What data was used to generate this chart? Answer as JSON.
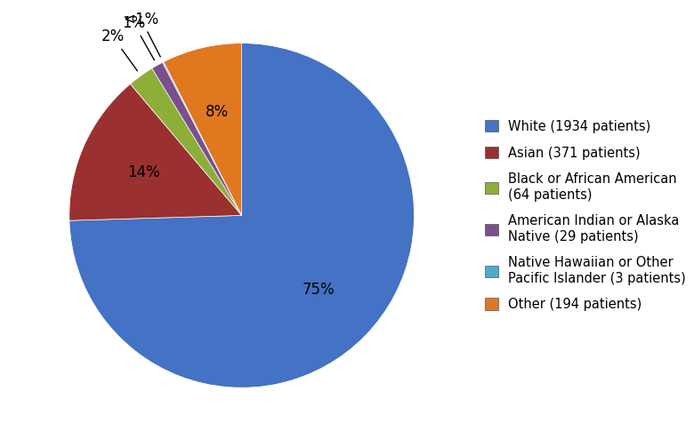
{
  "labels": [
    "White (1934 patients)",
    "Asian (371 patients)",
    "Black or African American\n(64 patients)",
    "American Indian or Alaska\nNative (29 patients)",
    "Native Hawaiian or Other\nPacific Islander (3 patients)",
    "Other (194 patients)"
  ],
  "values": [
    1934,
    371,
    64,
    29,
    3,
    194
  ],
  "colors": [
    "#4472C4",
    "#9B3030",
    "#8DAF3A",
    "#7B4F8C",
    "#4BACC6",
    "#E07820"
  ],
  "pct_labels": [
    "75%",
    "14%",
    "2%",
    "1%",
    "<1%",
    "8%"
  ],
  "bg_color": "#FFFFFF",
  "legend_fontsize": 10.5,
  "label_fontsize": 12
}
